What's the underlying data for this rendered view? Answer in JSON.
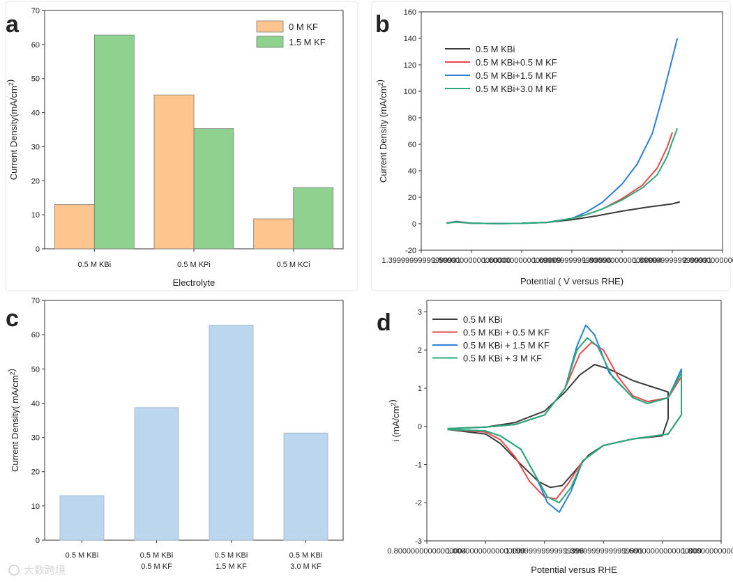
{
  "watermark": "大数跨境",
  "chart_data": [
    {
      "panel": "a",
      "type": "bar",
      "xlabel": "Electrolyte",
      "ylabel": "Current Density(mA/cm²)",
      "ylim": [
        0,
        70
      ],
      "yticks": [
        0,
        10,
        20,
        30,
        40,
        50,
        60,
        70
      ],
      "categories": [
        "0.5 M KBi",
        "0.5 M KPi",
        "0.5 M KCi"
      ],
      "series": [
        {
          "name": "0 M KF",
          "color": "#ffc58f",
          "values": [
            13,
            45.2,
            8.8
          ]
        },
        {
          "name": "1.5 M KF",
          "color": "#8fd18f",
          "values": [
            62.8,
            35.3,
            18
          ]
        }
      ],
      "legend": "top-right",
      "grid": false
    },
    {
      "panel": "b",
      "type": "line",
      "xlabel": "Potential ( V versus RHE)",
      "ylabel": "Current Density (mA/cm²)",
      "xlim": [
        1.4,
        2.0
      ],
      "ylim": [
        -20,
        160
      ],
      "xticks": [
        1.4,
        1.5,
        1.6,
        1.7,
        1.8,
        1.9,
        2.0
      ],
      "yticks": [
        -20,
        0,
        20,
        40,
        60,
        80,
        100,
        120,
        140,
        160
      ],
      "legend": "top-left",
      "grid": false,
      "series": [
        {
          "name": "0.5 M KBi",
          "color": "#3a3a3a",
          "points": [
            [
              1.45,
              0.5
            ],
            [
              1.47,
              1.5
            ],
            [
              1.5,
              0.4
            ],
            [
              1.55,
              0.1
            ],
            [
              1.6,
              0.3
            ],
            [
              1.65,
              1
            ],
            [
              1.7,
              3
            ],
            [
              1.75,
              6
            ],
            [
              1.8,
              9.5
            ],
            [
              1.85,
              12.5
            ],
            [
              1.9,
              15
            ],
            [
              1.915,
              16.5
            ]
          ]
        },
        {
          "name": "0.5 M KBi+0.5 M KF",
          "color": "#e8474b",
          "points": [
            [
              1.45,
              0.5
            ],
            [
              1.47,
              1.8
            ],
            [
              1.5,
              0.4
            ],
            [
              1.55,
              0.1
            ],
            [
              1.6,
              0.3
            ],
            [
              1.65,
              1
            ],
            [
              1.7,
              4
            ],
            [
              1.73,
              7
            ],
            [
              1.76,
              11
            ],
            [
              1.8,
              19
            ],
            [
              1.84,
              29
            ],
            [
              1.87,
              42
            ],
            [
              1.89,
              58
            ],
            [
              1.9,
              69
            ]
          ]
        },
        {
          "name": "0.5 M KBi+1.5 M KF",
          "color": "#2f7fd8",
          "points": [
            [
              1.45,
              0.5
            ],
            [
              1.47,
              1.5
            ],
            [
              1.5,
              0.4
            ],
            [
              1.55,
              0.1
            ],
            [
              1.6,
              0.3
            ],
            [
              1.65,
              1
            ],
            [
              1.7,
              4
            ],
            [
              1.73,
              9
            ],
            [
              1.76,
              16
            ],
            [
              1.8,
              30
            ],
            [
              1.83,
              45
            ],
            [
              1.86,
              68
            ],
            [
              1.88,
              95
            ],
            [
              1.9,
              125
            ],
            [
              1.91,
              140
            ]
          ]
        },
        {
          "name": "0.5 M KBi+3.0 M KF",
          "color": "#2aa876",
          "points": [
            [
              1.45,
              0.5
            ],
            [
              1.47,
              1.2
            ],
            [
              1.5,
              0.4
            ],
            [
              1.55,
              0.1
            ],
            [
              1.6,
              0.3
            ],
            [
              1.65,
              1
            ],
            [
              1.7,
              4
            ],
            [
              1.73,
              7
            ],
            [
              1.76,
              11
            ],
            [
              1.8,
              18
            ],
            [
              1.84,
              27
            ],
            [
              1.87,
              37
            ],
            [
              1.89,
              51
            ],
            [
              1.9,
              62
            ],
            [
              1.91,
              72
            ]
          ]
        }
      ]
    },
    {
      "panel": "c",
      "type": "bar",
      "xlabel": "",
      "ylabel": "Current Density( mA/cm²)",
      "ylim": [
        0,
        70
      ],
      "yticks": [
        0,
        10,
        20,
        30,
        40,
        50,
        60,
        70
      ],
      "categories": [
        [
          "0.5 M KBi"
        ],
        [
          "0.5 M KBi",
          "0.5 M KF"
        ],
        [
          "0.5 M KBi",
          "1.5 M KF"
        ],
        [
          "0.5 M KBi",
          "3.0 M KF"
        ]
      ],
      "series": [
        {
          "color": "#bcd6ee",
          "values": [
            13,
            38.7,
            62.8,
            31.3
          ]
        }
      ],
      "grid": false
    },
    {
      "panel": "d",
      "type": "line",
      "xlabel": "Potential versus RHE",
      "ylabel": "i (mA/cm²)",
      "xlim": [
        0.8,
        1.8
      ],
      "ylim": [
        -3,
        3.3
      ],
      "xticks": [
        0.8,
        1.0,
        1.2,
        1.4,
        1.6,
        1.8
      ],
      "yticks": [
        -3,
        -2,
        -1,
        0,
        1,
        2,
        3
      ],
      "legend": "top-left",
      "grid": false,
      "series": [
        {
          "name": "0.5 M KBi",
          "color": "#3a3a3a",
          "points": [
            [
              0.87,
              -0.06
            ],
            [
              1.0,
              -0.02
            ],
            [
              1.1,
              0.1
            ],
            [
              1.2,
              0.4
            ],
            [
              1.27,
              0.9
            ],
            [
              1.32,
              1.35
            ],
            [
              1.37,
              1.62
            ],
            [
              1.42,
              1.5
            ],
            [
              1.5,
              1.2
            ],
            [
              1.58,
              1.0
            ],
            [
              1.6,
              0.95
            ],
            [
              1.62,
              0.9
            ],
            [
              1.62,
              0.2
            ],
            [
              1.6,
              -0.25
            ],
            [
              1.5,
              -0.33
            ],
            [
              1.4,
              -0.5
            ],
            [
              1.35,
              -0.75
            ],
            [
              1.3,
              -1.2
            ],
            [
              1.26,
              -1.55
            ],
            [
              1.22,
              -1.6
            ],
            [
              1.18,
              -1.45
            ],
            [
              1.12,
              -1.0
            ],
            [
              1.05,
              -0.45
            ],
            [
              1.0,
              -0.2
            ],
            [
              0.87,
              -0.08
            ]
          ]
        },
        {
          "name": "0.5 M KBi + 0.5 M KF",
          "color": "#e8474b",
          "points": [
            [
              0.87,
              -0.06
            ],
            [
              1.0,
              -0.02
            ],
            [
              1.1,
              0.05
            ],
            [
              1.2,
              0.3
            ],
            [
              1.27,
              1.0
            ],
            [
              1.32,
              1.9
            ],
            [
              1.36,
              2.2
            ],
            [
              1.4,
              2.0
            ],
            [
              1.45,
              1.3
            ],
            [
              1.5,
              0.8
            ],
            [
              1.55,
              0.65
            ],
            [
              1.62,
              0.75
            ],
            [
              1.665,
              1.3
            ],
            [
              1.665,
              0.3
            ],
            [
              1.62,
              -0.2
            ],
            [
              1.5,
              -0.33
            ],
            [
              1.4,
              -0.5
            ],
            [
              1.33,
              -0.9
            ],
            [
              1.28,
              -1.5
            ],
            [
              1.24,
              -1.9
            ],
            [
              1.2,
              -1.85
            ],
            [
              1.15,
              -1.45
            ],
            [
              1.1,
              -0.8
            ],
            [
              1.05,
              -0.35
            ],
            [
              1.0,
              -0.15
            ],
            [
              0.87,
              -0.08
            ]
          ]
        },
        {
          "name": "0.5 M KBi + 1.5 M KF",
          "color": "#2f7fd8",
          "points": [
            [
              0.87,
              -0.06
            ],
            [
              1.0,
              -0.02
            ],
            [
              1.1,
              0.05
            ],
            [
              1.2,
              0.3
            ],
            [
              1.27,
              1.0
            ],
            [
              1.31,
              2.1
            ],
            [
              1.34,
              2.65
            ],
            [
              1.37,
              2.4
            ],
            [
              1.42,
              1.4
            ],
            [
              1.5,
              0.75
            ],
            [
              1.55,
              0.6
            ],
            [
              1.62,
              0.75
            ],
            [
              1.665,
              1.5
            ],
            [
              1.665,
              0.3
            ],
            [
              1.62,
              -0.2
            ],
            [
              1.5,
              -0.33
            ],
            [
              1.4,
              -0.5
            ],
            [
              1.33,
              -0.9
            ],
            [
              1.29,
              -1.7
            ],
            [
              1.25,
              -2.25
            ],
            [
              1.21,
              -2.0
            ],
            [
              1.17,
              -1.3
            ],
            [
              1.12,
              -0.6
            ],
            [
              1.05,
              -0.25
            ],
            [
              1.0,
              -0.12
            ],
            [
              0.87,
              -0.08
            ]
          ]
        },
        {
          "name": "0.5 M KBi + 3 M KF",
          "color": "#2aa876",
          "points": [
            [
              0.87,
              -0.06
            ],
            [
              1.0,
              -0.02
            ],
            [
              1.1,
              0.05
            ],
            [
              1.2,
              0.3
            ],
            [
              1.27,
              1.0
            ],
            [
              1.31,
              2.0
            ],
            [
              1.345,
              2.32
            ],
            [
              1.38,
              2.1
            ],
            [
              1.43,
              1.3
            ],
            [
              1.5,
              0.75
            ],
            [
              1.55,
              0.6
            ],
            [
              1.62,
              0.75
            ],
            [
              1.665,
              1.4
            ],
            [
              1.665,
              0.3
            ],
            [
              1.62,
              -0.2
            ],
            [
              1.5,
              -0.33
            ],
            [
              1.4,
              -0.5
            ],
            [
              1.33,
              -0.9
            ],
            [
              1.29,
              -1.6
            ],
            [
              1.25,
              -2.0
            ],
            [
              1.21,
              -1.85
            ],
            [
              1.17,
              -1.3
            ],
            [
              1.12,
              -0.6
            ],
            [
              1.05,
              -0.25
            ],
            [
              1.0,
              -0.12
            ],
            [
              0.87,
              -0.08
            ]
          ]
        }
      ]
    }
  ]
}
